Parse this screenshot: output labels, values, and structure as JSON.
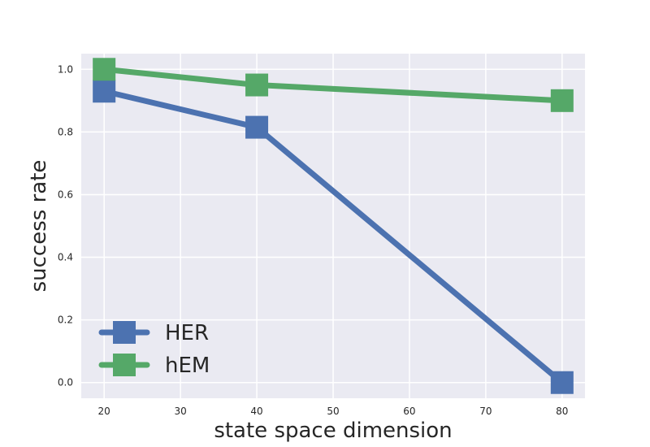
{
  "chart_data": {
    "type": "line",
    "title": "",
    "xlabel": "state space dimension",
    "ylabel": "success rate",
    "x": [
      20,
      40,
      80
    ],
    "series": [
      {
        "name": "HER",
        "color": "#4c72b0",
        "marker": "square",
        "values": [
          0.93,
          0.815,
          0.0
        ]
      },
      {
        "name": "hEM",
        "color": "#55a868",
        "marker": "square",
        "values": [
          1.0,
          0.95,
          0.9
        ]
      }
    ],
    "xlim": [
      17,
      83
    ],
    "ylim": [
      -0.05,
      1.05
    ],
    "xticks": [
      20,
      30,
      40,
      50,
      60,
      70,
      80
    ],
    "yticks": [
      0.0,
      0.2,
      0.4,
      0.6,
      0.8,
      1.0
    ],
    "xtick_labels": [
      "20",
      "30",
      "40",
      "50",
      "60",
      "70",
      "80"
    ],
    "ytick_labels": [
      "0.0",
      "0.2",
      "0.4",
      "0.6",
      "0.8",
      "1.0"
    ],
    "grid": true,
    "legend_position": "lower-left",
    "background_color": "#eaeaf2"
  }
}
